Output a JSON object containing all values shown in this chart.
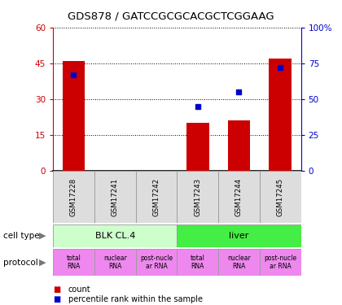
{
  "title": "GDS878 / GATCCGCGCACGCTCGGAAG",
  "samples": [
    "GSM17228",
    "GSM17241",
    "GSM17242",
    "GSM17243",
    "GSM17244",
    "GSM17245"
  ],
  "counts": [
    46,
    0,
    0,
    20,
    21,
    47
  ],
  "percentiles": [
    67,
    null,
    null,
    45,
    55,
    72
  ],
  "ylim_left": [
    0,
    60
  ],
  "ylim_right": [
    0,
    100
  ],
  "yticks_left": [
    0,
    15,
    30,
    45,
    60
  ],
  "yticks_right": [
    0,
    25,
    50,
    75,
    100
  ],
  "bar_color": "#cc0000",
  "dot_color": "#0000cc",
  "cell_types": [
    {
      "label": "BLK CL.4",
      "span": [
        0,
        3
      ],
      "color": "#ccffcc"
    },
    {
      "label": "liver",
      "span": [
        3,
        6
      ],
      "color": "#44ee44"
    }
  ],
  "protocols": [
    {
      "label": "total\nRNA",
      "idx": 0,
      "color": "#ee88ee"
    },
    {
      "label": "nuclear\nRNA",
      "idx": 1,
      "color": "#ee88ee"
    },
    {
      "label": "post-nucle\nar RNA",
      "idx": 2,
      "color": "#ee88ee"
    },
    {
      "label": "total\nRNA",
      "idx": 3,
      "color": "#ee88ee"
    },
    {
      "label": "nuclear\nRNA",
      "idx": 4,
      "color": "#ee88ee"
    },
    {
      "label": "post-nucle\nar RNA",
      "idx": 5,
      "color": "#ee88ee"
    }
  ],
  "legend_count_color": "#cc0000",
  "legend_pct_color": "#0000cc",
  "cell_type_label": "cell type",
  "protocol_label": "protocol",
  "sample_bg": "#dddddd"
}
